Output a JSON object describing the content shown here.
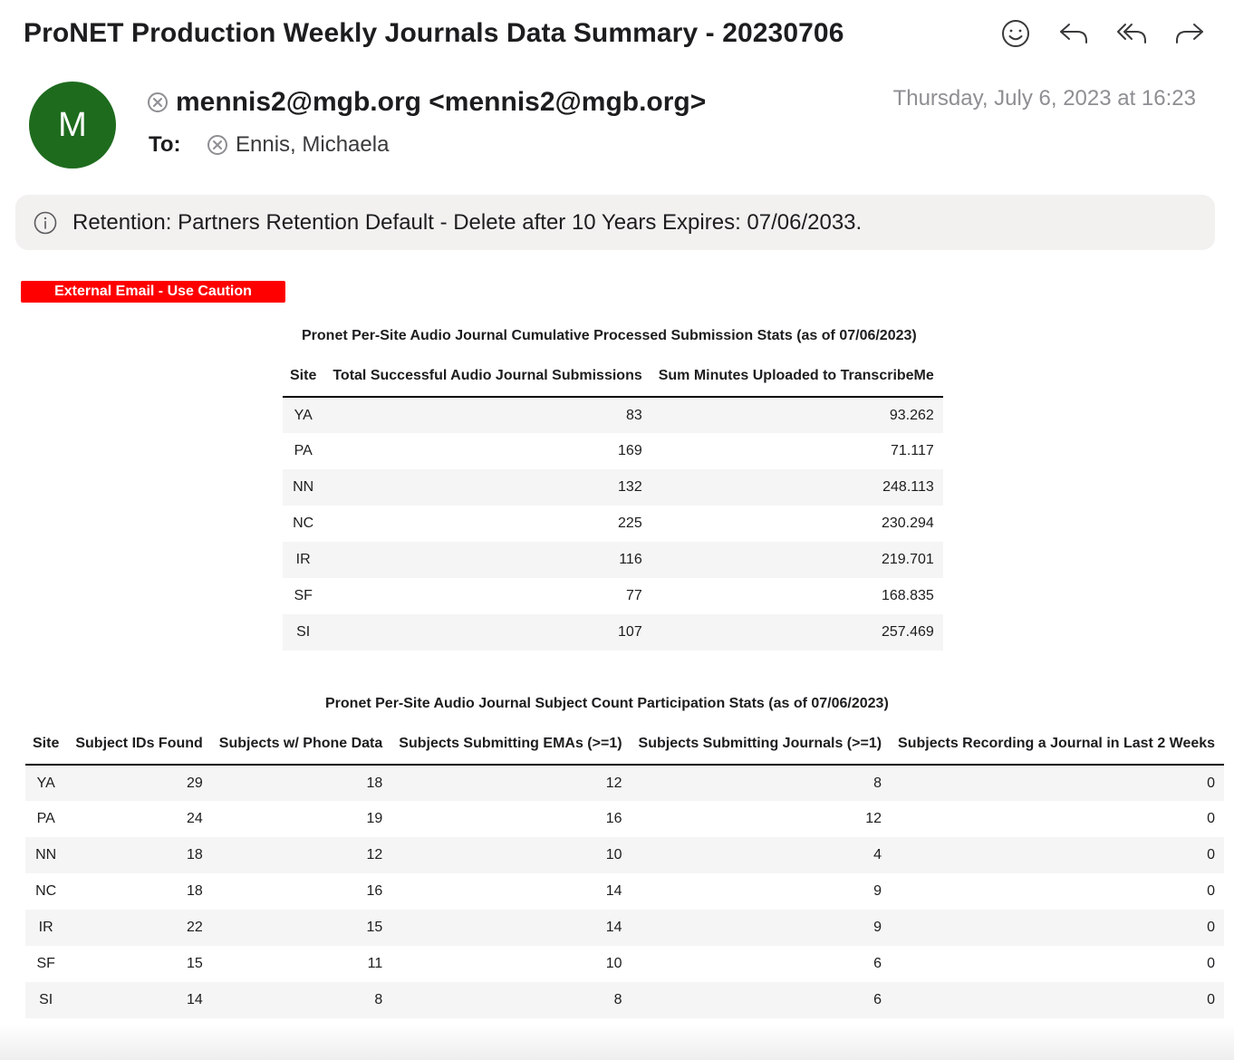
{
  "email": {
    "subject": "ProNET Production Weekly Journals Data Summary - 20230706",
    "avatar_letter": "M",
    "avatar_color": "#1e6b1e",
    "from": "mennis2@mgb.org <mennis2@mgb.org>",
    "to_label": "To:",
    "to_name": "Ennis, Michaela",
    "date": "Thursday, July 6, 2023 at 16:23",
    "retention": "Retention: Partners Retention Default - Delete after 10 Years Expires: 07/06/2033.",
    "caution_label": "External Email - Use Caution",
    "caution_color": "#ff0000"
  },
  "toolbar": {
    "icons": [
      "emoji-icon",
      "reply-icon",
      "reply-all-icon",
      "forward-icon"
    ]
  },
  "table1": {
    "title": "Pronet Per-Site Audio Journal Cumulative Processed Submission Stats (as of 07/06/2023)",
    "headers": [
      "Site",
      "Total Successful Audio Journal Submissions",
      "Sum Minutes Uploaded to TranscribeMe"
    ],
    "rows": [
      [
        "YA",
        "83",
        "93.262"
      ],
      [
        "PA",
        "169",
        "71.117"
      ],
      [
        "NN",
        "132",
        "248.113"
      ],
      [
        "NC",
        "225",
        "230.294"
      ],
      [
        "IR",
        "116",
        "219.701"
      ],
      [
        "SF",
        "77",
        "168.835"
      ],
      [
        "SI",
        "107",
        "257.469"
      ]
    ]
  },
  "table2": {
    "title": "Pronet Per-Site Audio Journal Subject Count Participation Stats (as of 07/06/2023)",
    "headers": [
      "Site",
      "Subject IDs Found",
      "Subjects w/ Phone Data",
      "Subjects Submitting EMAs (>=1)",
      "Subjects Submitting Journals (>=1)",
      "Subjects Recording a Journal in Last 2 Weeks"
    ],
    "rows": [
      [
        "YA",
        "29",
        "18",
        "12",
        "8",
        "0"
      ],
      [
        "PA",
        "24",
        "19",
        "16",
        "12",
        "0"
      ],
      [
        "NN",
        "18",
        "12",
        "10",
        "4",
        "0"
      ],
      [
        "NC",
        "18",
        "16",
        "14",
        "9",
        "0"
      ],
      [
        "IR",
        "22",
        "15",
        "14",
        "9",
        "0"
      ],
      [
        "SF",
        "15",
        "11",
        "10",
        "6",
        "0"
      ],
      [
        "SI",
        "14",
        "8",
        "8",
        "6",
        "0"
      ]
    ]
  }
}
